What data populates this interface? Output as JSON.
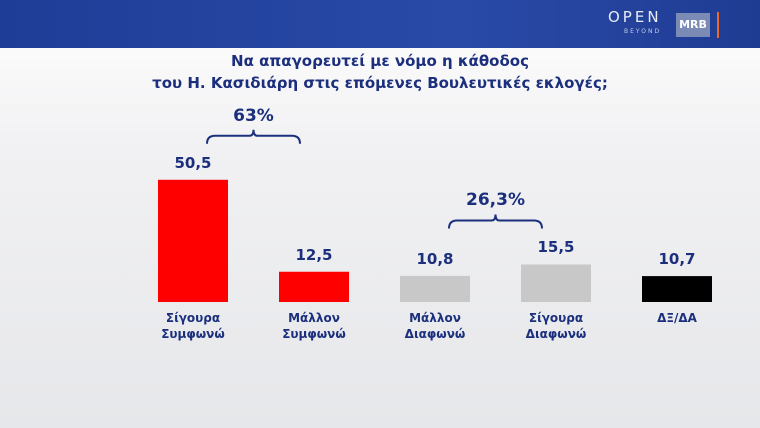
{
  "header": {
    "logo": "OPEN",
    "logo_sub": "BEYOND",
    "badge": "MRB"
  },
  "chart_data": {
    "type": "bar",
    "title": [
      "Να απαγορευτεί με νόμο η κάθοδος",
      "του Η. Κασιδιάρη στις επόμενες Βουλευτικές εκλογές;"
    ],
    "categories": [
      "Σίγουρα Συμφωνώ",
      "Μάλλον Συμφωνώ",
      "Μάλλον Διαφωνώ",
      "Σίγουρα Διαφωνώ",
      "ΔΞ/ΔΑ"
    ],
    "values": [
      50.5,
      12.5,
      10.8,
      15.5,
      10.7
    ],
    "value_labels": [
      "50,5",
      "12,5",
      "10,8",
      "15,5",
      "10,7"
    ],
    "colors": [
      "#ff0000",
      "#ff0000",
      "#c8c8c8",
      "#c8c8c8",
      "#000000"
    ],
    "annotations": [
      {
        "text": "63%"
      },
      {
        "text": "26,3%"
      }
    ]
  }
}
